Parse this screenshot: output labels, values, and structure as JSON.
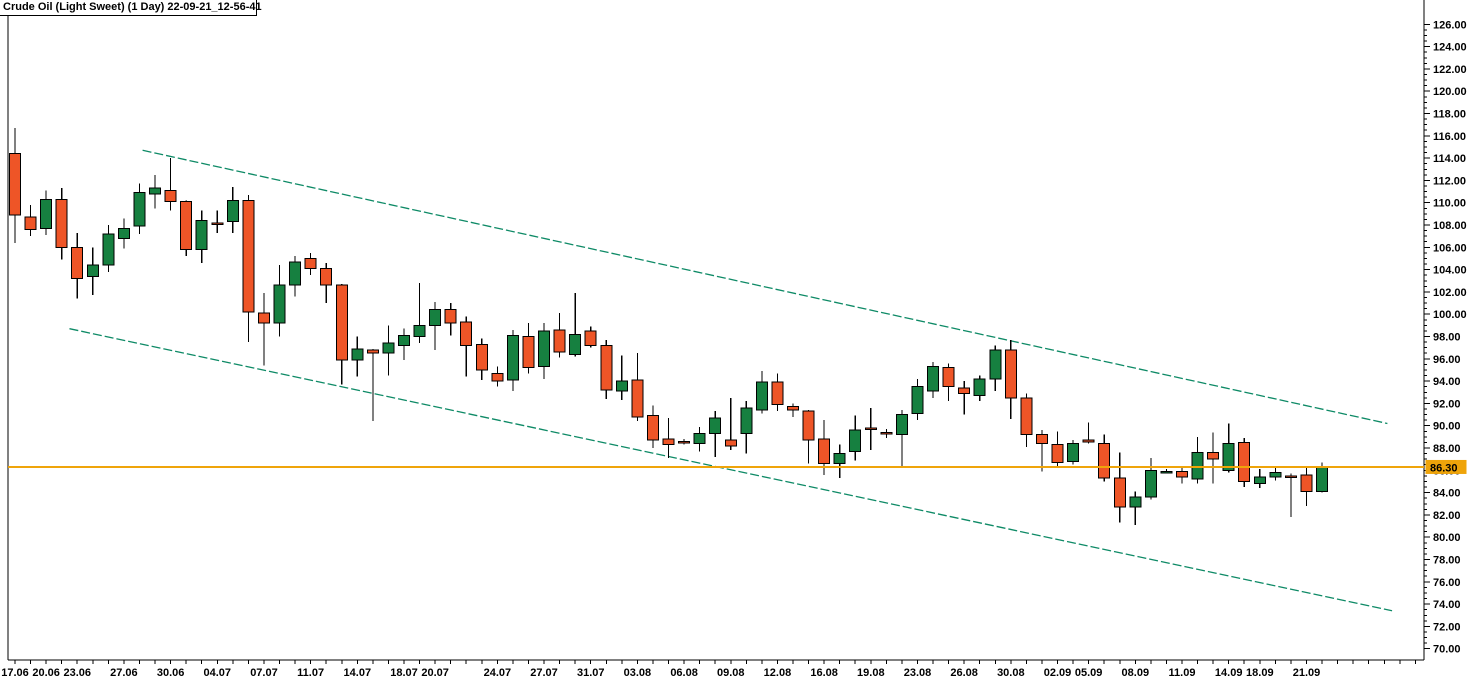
{
  "title": "Crude Oil (Light Sweet) (1 Day) 22-09-21_12-56-41",
  "chart_data": {
    "type": "candlestick",
    "instrument": "Crude Oil (Light Sweet)",
    "timeframe": "1 Day",
    "snapshot_id": "22-09-21_12-56-41",
    "last_price": "86.30",
    "last_price_value": 86.3,
    "colors": {
      "up": "#168040",
      "down": "#EE5527",
      "channel": "#0E8A66",
      "price_line": "#EFA40A",
      "axis": "#000000",
      "background": "#FFFFFF"
    },
    "y_axis": {
      "max": 126,
      "min": 70,
      "major_step": 2,
      "minor_step": 0.5,
      "labels": [
        "126.00",
        "124.00",
        "122.00",
        "120.00",
        "118.00",
        "116.00",
        "114.00",
        "112.00",
        "110.00",
        "108.00",
        "106.00",
        "104.00",
        "102.00",
        "100.00",
        "98.00",
        "96.00",
        "94.00",
        "92.00",
        "90.00",
        "88.00",
        "86.00",
        "84.00",
        "82.00",
        "80.00",
        "78.00",
        "76.00",
        "74.00",
        "72.00",
        "70.00"
      ]
    },
    "x_axis": {
      "labels": [
        {
          "i": 0,
          "t": "17.06"
        },
        {
          "i": 2,
          "t": "20.06"
        },
        {
          "i": 4,
          "t": "23.06"
        },
        {
          "i": 7,
          "t": "27.06"
        },
        {
          "i": 10,
          "t": "30.06"
        },
        {
          "i": 13,
          "t": "04.07"
        },
        {
          "i": 16,
          "t": "07.07"
        },
        {
          "i": 19,
          "t": "11.07"
        },
        {
          "i": 22,
          "t": "14.07"
        },
        {
          "i": 25,
          "t": "18.07"
        },
        {
          "i": 27,
          "t": "20.07"
        },
        {
          "i": 31,
          "t": "24.07"
        },
        {
          "i": 34,
          "t": "27.07"
        },
        {
          "i": 37,
          "t": "31.07"
        },
        {
          "i": 40,
          "t": "03.08"
        },
        {
          "i": 43,
          "t": "06.08"
        },
        {
          "i": 46,
          "t": "09.08"
        },
        {
          "i": 49,
          "t": "12.08"
        },
        {
          "i": 52,
          "t": "16.08"
        },
        {
          "i": 55,
          "t": "19.08"
        },
        {
          "i": 58,
          "t": "23.08"
        },
        {
          "i": 61,
          "t": "26.08"
        },
        {
          "i": 64,
          "t": "30.08"
        },
        {
          "i": 67,
          "t": "02.09"
        },
        {
          "i": 69,
          "t": "05.09"
        },
        {
          "i": 72,
          "t": "08.09"
        },
        {
          "i": 75,
          "t": "11.09"
        },
        {
          "i": 78,
          "t": "14.09"
        },
        {
          "i": 80,
          "t": "18.09"
        },
        {
          "i": 83,
          "t": "21.09"
        }
      ]
    },
    "candle_format": [
      "open",
      "high",
      "low",
      "close"
    ],
    "candles": [
      [
        114.4,
        116.7,
        106.4,
        108.9
      ],
      [
        108.7,
        109.8,
        107.0,
        107.6
      ],
      [
        107.7,
        111.1,
        107.1,
        110.3
      ],
      [
        110.3,
        111.3,
        104.9,
        106.0
      ],
      [
        106.0,
        107.3,
        101.4,
        103.2
      ],
      [
        103.4,
        106.0,
        101.7,
        104.4
      ],
      [
        104.4,
        108.0,
        103.8,
        107.2
      ],
      [
        106.8,
        108.6,
        105.9,
        107.7
      ],
      [
        107.9,
        111.7,
        107.2,
        110.9
      ],
      [
        110.8,
        112.5,
        109.5,
        111.3
      ],
      [
        111.1,
        114.0,
        109.3,
        110.1
      ],
      [
        110.1,
        110.2,
        105.2,
        105.8
      ],
      [
        105.8,
        109.3,
        104.6,
        108.4
      ],
      [
        108.2,
        109.3,
        107.3,
        108.1
      ],
      [
        108.3,
        111.4,
        107.3,
        110.2
      ],
      [
        110.2,
        110.7,
        97.5,
        100.2
      ],
      [
        100.1,
        101.9,
        95.4,
        99.2
      ],
      [
        99.2,
        104.4,
        98.0,
        102.6
      ],
      [
        102.6,
        105.2,
        101.6,
        104.7
      ],
      [
        105.0,
        105.5,
        103.5,
        104.1
      ],
      [
        104.1,
        104.6,
        101.0,
        102.6
      ],
      [
        102.6,
        102.7,
        93.7,
        95.9
      ],
      [
        95.9,
        98.0,
        94.4,
        96.9
      ],
      [
        96.8,
        96.9,
        90.4,
        96.5
      ],
      [
        96.5,
        99.0,
        94.5,
        97.4
      ],
      [
        97.2,
        98.7,
        95.9,
        98.1
      ],
      [
        98.0,
        102.8,
        97.4,
        99.0
      ],
      [
        99.0,
        101.1,
        96.8,
        100.4
      ],
      [
        100.4,
        101.0,
        98.1,
        99.2
      ],
      [
        99.3,
        99.8,
        94.4,
        97.2
      ],
      [
        97.3,
        97.8,
        94.1,
        95.0
      ],
      [
        94.7,
        95.3,
        93.5,
        94.0
      ],
      [
        94.1,
        98.6,
        93.1,
        98.1
      ],
      [
        98.0,
        99.2,
        94.7,
        95.2
      ],
      [
        95.3,
        99.2,
        94.2,
        98.5
      ],
      [
        98.6,
        100.1,
        96.1,
        96.6
      ],
      [
        96.4,
        101.9,
        96.2,
        98.2
      ],
      [
        98.5,
        98.9,
        97.0,
        97.2
      ],
      [
        97.2,
        97.7,
        92.4,
        93.2
      ],
      [
        93.1,
        96.3,
        92.3,
        94.0
      ],
      [
        94.1,
        96.5,
        90.4,
        90.8
      ],
      [
        90.9,
        91.8,
        88.0,
        88.7
      ],
      [
        88.8,
        90.7,
        87.1,
        88.3
      ],
      [
        88.6,
        88.8,
        88.3,
        88.5
      ],
      [
        88.4,
        89.9,
        87.7,
        89.3
      ],
      [
        89.3,
        91.3,
        87.2,
        90.7
      ],
      [
        88.7,
        92.5,
        87.8,
        88.2
      ],
      [
        89.3,
        92.2,
        87.5,
        91.6
      ],
      [
        91.4,
        94.9,
        91.1,
        93.9
      ],
      [
        93.9,
        94.7,
        91.3,
        91.9
      ],
      [
        91.7,
        92.0,
        90.8,
        91.4
      ],
      [
        91.3,
        91.4,
        86.6,
        88.7
      ],
      [
        88.8,
        90.5,
        85.6,
        86.6
      ],
      [
        86.6,
        88.3,
        85.3,
        87.5
      ],
      [
        87.7,
        90.9,
        86.9,
        89.6
      ],
      [
        89.8,
        91.6,
        87.8,
        89.7
      ],
      [
        89.4,
        89.7,
        88.9,
        89.3
      ],
      [
        89.2,
        91.4,
        86.2,
        91.0
      ],
      [
        91.1,
        94.2,
        90.5,
        93.5
      ],
      [
        93.1,
        95.7,
        92.5,
        95.3
      ],
      [
        95.2,
        95.6,
        92.2,
        93.5
      ],
      [
        93.4,
        94.0,
        91.0,
        92.9
      ],
      [
        92.7,
        94.5,
        92.2,
        94.2
      ],
      [
        94.2,
        97.2,
        93.1,
        96.8
      ],
      [
        96.8,
        97.7,
        90.6,
        92.5
      ],
      [
        92.5,
        92.9,
        88.1,
        89.2
      ],
      [
        89.2,
        89.6,
        85.9,
        88.4
      ],
      [
        88.3,
        89.5,
        86.4,
        86.7
      ],
      [
        86.8,
        88.7,
        86.5,
        88.4
      ],
      [
        88.7,
        90.3,
        88.4,
        88.6
      ],
      [
        88.4,
        89.2,
        85.0,
        85.3
      ],
      [
        85.3,
        87.6,
        81.3,
        82.7
      ],
      [
        82.7,
        84.1,
        81.1,
        83.6
      ],
      [
        83.6,
        87.1,
        83.4,
        86.0
      ],
      [
        85.9,
        86.1,
        85.7,
        85.9
      ],
      [
        85.9,
        86.4,
        84.8,
        85.4
      ],
      [
        85.2,
        89.0,
        84.8,
        87.6
      ],
      [
        87.6,
        89.4,
        84.8,
        87.0
      ],
      [
        86.0,
        90.2,
        85.8,
        88.4
      ],
      [
        88.5,
        88.9,
        84.5,
        85.0
      ],
      [
        84.8,
        86.1,
        84.4,
        85.4
      ],
      [
        85.4,
        86.2,
        85.1,
        85.8
      ],
      [
        85.5,
        85.7,
        81.8,
        85.4
      ],
      [
        85.6,
        86.2,
        82.8,
        84.1
      ],
      [
        84.1,
        86.7,
        84.0,
        86.3
      ]
    ],
    "annotations": {
      "channel_lines": [
        {
          "name": "upper",
          "from": {
            "i": 8.2,
            "p": 114.7
          },
          "to": {
            "i": 88.2,
            "p": 90.2
          }
        },
        {
          "name": "lower",
          "from": {
            "i": 3.5,
            "p": 98.7
          },
          "to": {
            "i": 88.5,
            "p": 73.4
          }
        }
      ],
      "price_line": {
        "price": 86.3,
        "label": "86.30"
      }
    }
  }
}
